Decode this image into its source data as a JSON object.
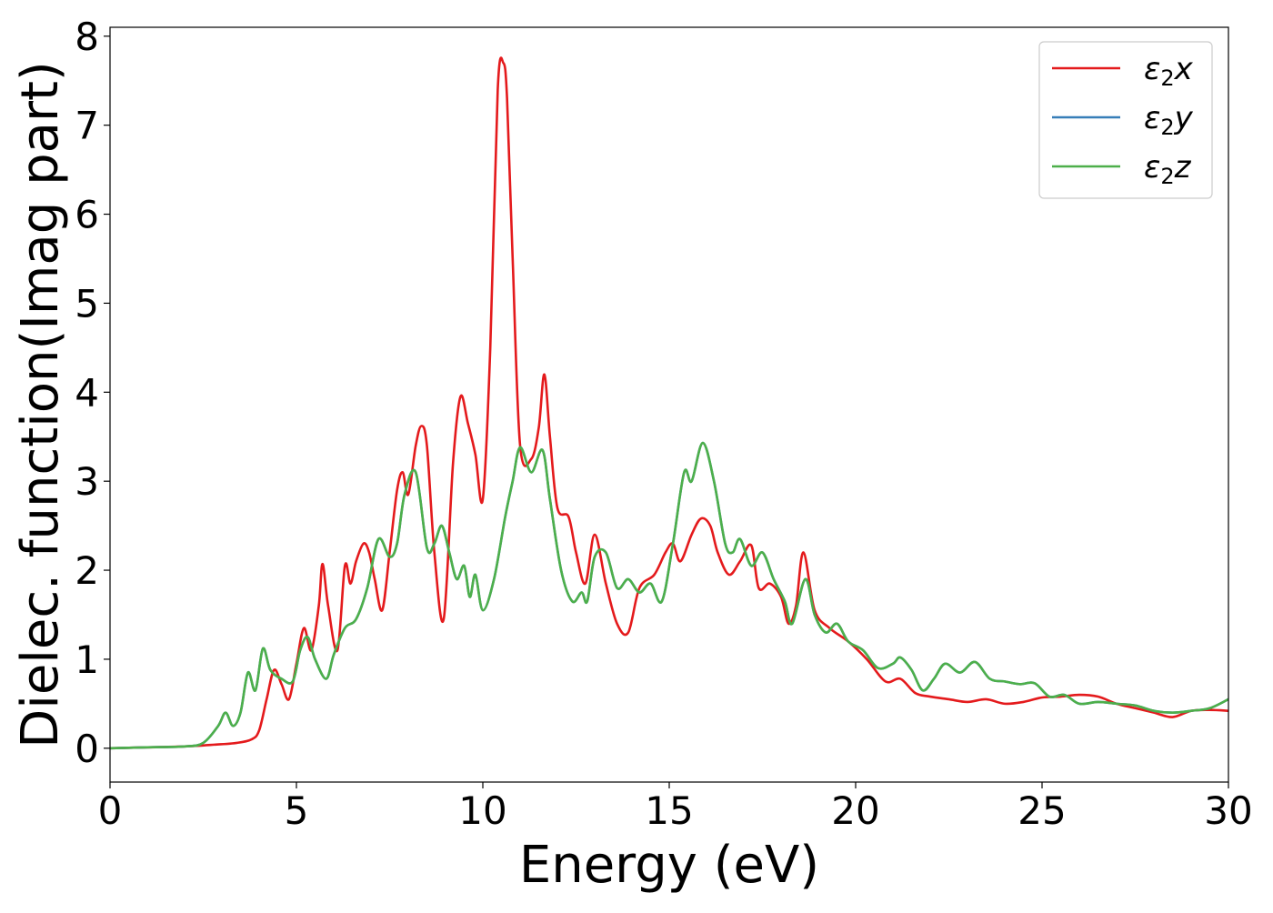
{
  "chart_data": {
    "type": "line",
    "title": "",
    "xlabel": "Energy (eV)",
    "ylabel": "Dielec. function(Imag part)",
    "xlim": [
      0,
      30
    ],
    "ylim": [
      -0.38,
      8.1
    ],
    "xticks": [
      0,
      5,
      10,
      15,
      20,
      25,
      30
    ],
    "yticks": [
      0,
      1,
      2,
      3,
      4,
      5,
      6,
      7,
      8
    ],
    "grid": false,
    "legend": {
      "placement": "top-right",
      "entries": [
        "ε2x",
        "ε2y",
        "ε2z"
      ]
    },
    "series": [
      {
        "name": "ε2x",
        "color": "#e41a1c",
        "x": [
          0,
          1,
          2,
          2.8,
          3.4,
          3.8,
          4.0,
          4.2,
          4.4,
          4.6,
          4.8,
          5.0,
          5.2,
          5.4,
          5.6,
          5.7,
          5.85,
          6.1,
          6.3,
          6.45,
          6.6,
          6.8,
          6.95,
          7.1,
          7.3,
          7.5,
          7.7,
          7.85,
          8.0,
          8.2,
          8.35,
          8.5,
          8.7,
          8.95,
          9.2,
          9.4,
          9.6,
          9.8,
          10.0,
          10.2,
          10.4,
          10.55,
          10.65,
          10.8,
          11.0,
          11.3,
          11.5,
          11.65,
          11.8,
          12.0,
          12.3,
          12.5,
          12.75,
          13.0,
          13.3,
          13.6,
          13.9,
          14.2,
          14.6,
          14.9,
          15.1,
          15.3,
          15.6,
          15.85,
          16.1,
          16.3,
          16.6,
          16.9,
          17.2,
          17.4,
          17.7,
          18.0,
          18.2,
          18.4,
          18.6,
          18.9,
          19.3,
          19.8,
          20.3,
          20.8,
          21.2,
          21.6,
          22.0,
          22.5,
          23.0,
          23.5,
          24.0,
          24.5,
          25.0,
          25.5,
          26.0,
          26.5,
          27.0,
          27.5,
          28.0,
          28.5,
          29.0,
          29.5,
          30.0
        ],
        "y": [
          0.0,
          0.01,
          0.02,
          0.04,
          0.06,
          0.1,
          0.2,
          0.55,
          0.88,
          0.72,
          0.55,
          0.95,
          1.35,
          1.1,
          1.6,
          2.07,
          1.6,
          1.1,
          2.05,
          1.85,
          2.1,
          2.3,
          2.2,
          1.9,
          1.55,
          2.2,
          2.9,
          3.1,
          2.85,
          3.4,
          3.62,
          3.4,
          2.2,
          1.45,
          3.2,
          3.95,
          3.65,
          3.3,
          2.8,
          4.5,
          7.4,
          7.7,
          7.3,
          5.5,
          3.4,
          3.25,
          3.6,
          4.2,
          3.5,
          2.7,
          2.6,
          2.2,
          1.85,
          2.4,
          1.85,
          1.4,
          1.3,
          1.8,
          1.95,
          2.2,
          2.3,
          2.1,
          2.4,
          2.58,
          2.5,
          2.2,
          1.95,
          2.1,
          2.28,
          1.8,
          1.85,
          1.7,
          1.4,
          1.6,
          2.2,
          1.55,
          1.35,
          1.2,
          1.0,
          0.75,
          0.78,
          0.62,
          0.58,
          0.55,
          0.52,
          0.55,
          0.5,
          0.52,
          0.57,
          0.58,
          0.6,
          0.58,
          0.5,
          0.45,
          0.4,
          0.35,
          0.42,
          0.43,
          0.42
        ]
      },
      {
        "name": "ε2y",
        "color": "#377eb8",
        "x": [
          0,
          1,
          2,
          2.5,
          2.9,
          3.1,
          3.3,
          3.5,
          3.7,
          3.9,
          4.1,
          4.3,
          4.6,
          4.9,
          5.1,
          5.3,
          5.5,
          5.8,
          6.0,
          6.3,
          6.6,
          6.9,
          7.2,
          7.5,
          7.7,
          7.9,
          8.2,
          8.5,
          8.7,
          8.9,
          9.1,
          9.3,
          9.5,
          9.65,
          9.8,
          10.0,
          10.3,
          10.6,
          10.8,
          11.0,
          11.3,
          11.6,
          11.8,
          12.1,
          12.4,
          12.65,
          12.8,
          13.0,
          13.3,
          13.6,
          13.9,
          14.2,
          14.5,
          14.8,
          15.1,
          15.4,
          15.6,
          15.9,
          16.2,
          16.5,
          16.7,
          16.9,
          17.2,
          17.5,
          17.8,
          18.1,
          18.3,
          18.65,
          18.9,
          19.2,
          19.5,
          19.8,
          20.2,
          20.6,
          21.0,
          21.2,
          21.5,
          21.8,
          22.1,
          22.4,
          22.8,
          23.2,
          23.6,
          24.0,
          24.4,
          24.8,
          25.2,
          25.6,
          26.0,
          26.5,
          27.0,
          27.5,
          28.0,
          28.5,
          29.0,
          29.5,
          30.0
        ],
        "y": [
          0.0,
          0.01,
          0.02,
          0.06,
          0.25,
          0.4,
          0.25,
          0.4,
          0.85,
          0.65,
          1.12,
          0.88,
          0.78,
          0.75,
          1.1,
          1.25,
          1.0,
          0.78,
          1.05,
          1.35,
          1.45,
          1.8,
          2.35,
          2.15,
          2.3,
          2.85,
          3.1,
          2.25,
          2.3,
          2.5,
          2.2,
          1.9,
          2.05,
          1.7,
          1.95,
          1.55,
          1.9,
          2.6,
          3.0,
          3.38,
          3.1,
          3.35,
          2.8,
          2.0,
          1.65,
          1.75,
          1.65,
          2.15,
          2.2,
          1.8,
          1.9,
          1.75,
          1.85,
          1.65,
          2.3,
          3.1,
          3.0,
          3.43,
          3.0,
          2.3,
          2.2,
          2.35,
          2.05,
          2.2,
          1.9,
          1.65,
          1.4,
          1.9,
          1.5,
          1.3,
          1.4,
          1.2,
          1.1,
          0.9,
          0.95,
          1.02,
          0.88,
          0.65,
          0.78,
          0.95,
          0.85,
          0.97,
          0.78,
          0.75,
          0.72,
          0.73,
          0.58,
          0.6,
          0.5,
          0.52,
          0.5,
          0.48,
          0.42,
          0.4,
          0.42,
          0.45,
          0.55
        ]
      },
      {
        "name": "ε2z",
        "color": "#4daf4a",
        "x": [
          0,
          1,
          2,
          2.5,
          2.9,
          3.1,
          3.3,
          3.5,
          3.7,
          3.9,
          4.1,
          4.3,
          4.6,
          4.9,
          5.1,
          5.3,
          5.5,
          5.8,
          6.0,
          6.3,
          6.6,
          6.9,
          7.2,
          7.5,
          7.7,
          7.9,
          8.2,
          8.5,
          8.7,
          8.9,
          9.1,
          9.3,
          9.5,
          9.65,
          9.8,
          10.0,
          10.3,
          10.6,
          10.8,
          11.0,
          11.3,
          11.6,
          11.8,
          12.1,
          12.4,
          12.65,
          12.8,
          13.0,
          13.3,
          13.6,
          13.9,
          14.2,
          14.5,
          14.8,
          15.1,
          15.4,
          15.6,
          15.9,
          16.2,
          16.5,
          16.7,
          16.9,
          17.2,
          17.5,
          17.8,
          18.1,
          18.3,
          18.65,
          18.9,
          19.2,
          19.5,
          19.8,
          20.2,
          20.6,
          21.0,
          21.2,
          21.5,
          21.8,
          22.1,
          22.4,
          22.8,
          23.2,
          23.6,
          24.0,
          24.4,
          24.8,
          25.2,
          25.6,
          26.0,
          26.5,
          27.0,
          27.5,
          28.0,
          28.5,
          29.0,
          29.5,
          30.0
        ],
        "y": [
          0.0,
          0.01,
          0.02,
          0.06,
          0.25,
          0.4,
          0.25,
          0.4,
          0.85,
          0.65,
          1.12,
          0.88,
          0.78,
          0.75,
          1.1,
          1.25,
          1.0,
          0.78,
          1.05,
          1.35,
          1.45,
          1.8,
          2.35,
          2.15,
          2.3,
          2.85,
          3.1,
          2.25,
          2.3,
          2.5,
          2.2,
          1.9,
          2.05,
          1.7,
          1.95,
          1.55,
          1.9,
          2.6,
          3.0,
          3.38,
          3.1,
          3.35,
          2.8,
          2.0,
          1.65,
          1.75,
          1.65,
          2.15,
          2.2,
          1.8,
          1.9,
          1.75,
          1.85,
          1.65,
          2.3,
          3.1,
          3.0,
          3.43,
          3.0,
          2.3,
          2.2,
          2.35,
          2.05,
          2.2,
          1.9,
          1.65,
          1.4,
          1.9,
          1.5,
          1.3,
          1.4,
          1.2,
          1.1,
          0.9,
          0.95,
          1.02,
          0.88,
          0.65,
          0.78,
          0.95,
          0.85,
          0.97,
          0.78,
          0.75,
          0.72,
          0.73,
          0.58,
          0.6,
          0.5,
          0.52,
          0.5,
          0.48,
          0.42,
          0.4,
          0.42,
          0.45,
          0.55
        ]
      }
    ]
  }
}
